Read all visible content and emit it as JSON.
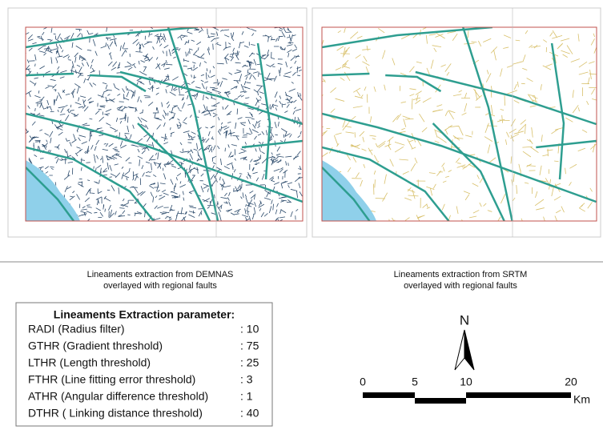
{
  "maps": [
    {
      "caption": [
        "Lineaments extraction from DEMNAS",
        "overlayed with regional faults"
      ]
    },
    {
      "caption": [
        "Lineaments extraction from SRTM",
        "overlayed with regional faults"
      ]
    }
  ],
  "parameters": {
    "title": "Lineaments Extraction parameter:",
    "rows": [
      [
        "RADI (Radius filter)",
        ": 10"
      ],
      [
        "GTHR (Gradient threshold)",
        ": 75"
      ],
      [
        "LTHR (Length threshold)",
        ": 25"
      ],
      [
        "FTHR (Line fitting error threshold)",
        ": 3"
      ],
      [
        "ATHR (Angular difference threshold)",
        ": 1"
      ],
      [
        "DTHR ( Linking distance threshold)",
        ": 40"
      ]
    ]
  },
  "north_arrow": "N",
  "scale_bar": {
    "labels": [
      "0",
      "5",
      "10",
      "20"
    ],
    "unit": "Km"
  }
}
